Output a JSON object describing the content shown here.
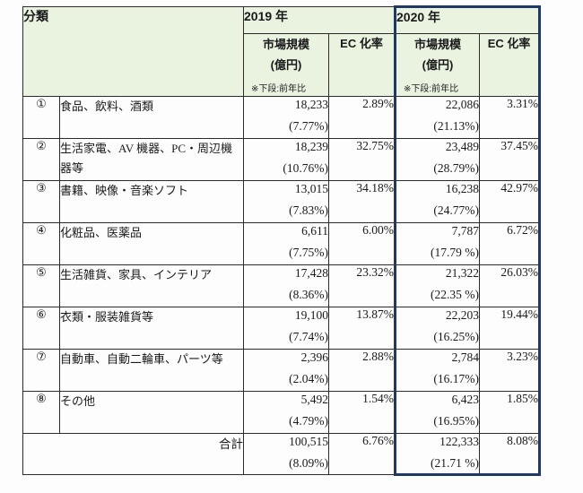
{
  "table": {
    "header": {
      "classification": "分類",
      "year2019": "2019 年",
      "year2020": "2020 年",
      "market_size_label": "市場規模",
      "market_size_unit": "(億円)",
      "note": "※下段:前年比",
      "ec_rate_label": "EC 化率"
    },
    "rows": [
      {
        "no": "①",
        "category": "食品、飲料、酒類",
        "m2019": "18,233",
        "yoy2019": "(7.77%)",
        "ec2019": "2.89%",
        "m2020": "22,086",
        "yoy2020": "(21.13%)",
        "ec2020": "3.31%"
      },
      {
        "no": "②",
        "category": "生活家電、AV 機器、PC・周辺機器等",
        "m2019": "18,239",
        "yoy2019": "(10.76%)",
        "ec2019": "32.75%",
        "m2020": "23,489",
        "yoy2020": "(28.79%)",
        "ec2020": "37.45%"
      },
      {
        "no": "③",
        "category": "書籍、映像・音楽ソフト",
        "m2019": "13,015",
        "yoy2019": "(7.83%)",
        "ec2019": "34.18%",
        "m2020": "16,238",
        "yoy2020": "(24.77%)",
        "ec2020": "42.97%"
      },
      {
        "no": "④",
        "category": "化粧品、医薬品",
        "m2019": "6,611",
        "yoy2019": "(7.75%)",
        "ec2019": "6.00%",
        "m2020": "7,787",
        "yoy2020": "(17.79 %)",
        "ec2020": "6.72%"
      },
      {
        "no": "⑤",
        "category": "生活雑貨、家具、インテリア",
        "m2019": "17,428",
        "yoy2019": "(8.36%)",
        "ec2019": "23.32%",
        "m2020": "21,322",
        "yoy2020": "(22.35 %)",
        "ec2020": "26.03%"
      },
      {
        "no": "⑥",
        "category": "衣類・服装雑貨等",
        "m2019": "19,100",
        "yoy2019": "(7.74%)",
        "ec2019": "13.87%",
        "m2020": "22,203",
        "yoy2020": "(16.25%)",
        "ec2020": "19.44%"
      },
      {
        "no": "⑦",
        "category": "自動車、自動二輪車、パーツ等",
        "m2019": "2,396",
        "yoy2019": "(2.04%)",
        "ec2019": "2.88%",
        "m2020": "2,784",
        "yoy2020": "(16.17%)",
        "ec2020": "3.23%"
      },
      {
        "no": "⑧",
        "category": "その他",
        "m2019": "5,492",
        "yoy2019": "(4.79%)",
        "ec2019": "1.54%",
        "m2020": "6,423",
        "yoy2020": "(16.95%)",
        "ec2020": "1.85%"
      }
    ],
    "total": {
      "label": "合計",
      "m2019": "100,515",
      "yoy2019": "(8.09%)",
      "ec2019": "6.76%",
      "m2020": "122,333",
      "yoy2020": "(21.71 %)",
      "ec2020": "8.08%"
    }
  },
  "colors": {
    "header_bg": "#eaf2e0",
    "highlight_border": "#1f3864",
    "grid_line": "#2b2b2b"
  }
}
